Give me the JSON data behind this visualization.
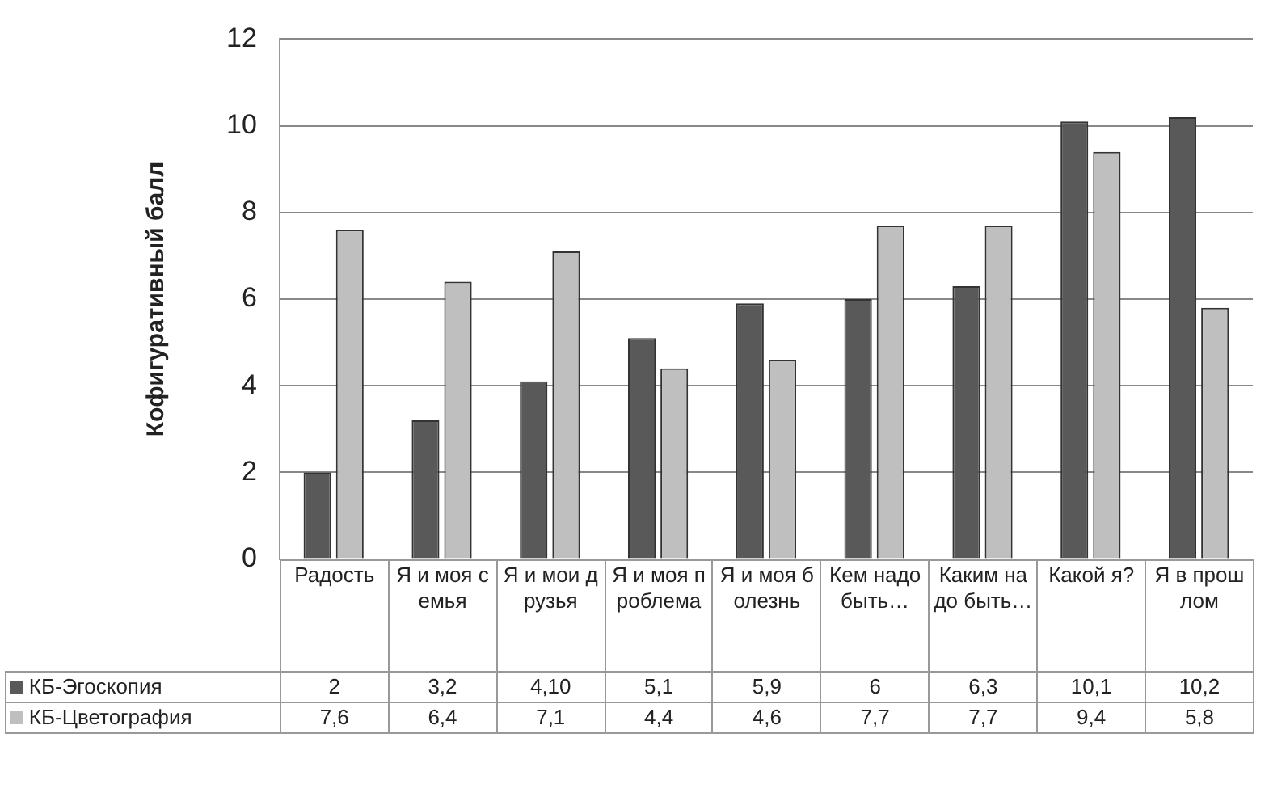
{
  "chart_data": {
    "type": "bar",
    "ylabel": "Кофигуративный балл",
    "categories": [
      "Радость",
      "Я и моя семья",
      "Я и мои друзья",
      "Я и моя проблема",
      "Я и моя болезнь",
      "Кем надо быть…",
      "Каким надо быть…",
      "Какой я?",
      "Я в прошлом"
    ],
    "series": [
      {
        "name": "КБ-Эгоскопия",
        "color": "#595959",
        "values": [
          2,
          3.2,
          4.1,
          5.1,
          5.9,
          6,
          6.3,
          10.1,
          10.2
        ],
        "value_labels": [
          "2",
          "3,2",
          "4,10",
          "5,1",
          "5,9",
          "6",
          "6,3",
          "10,1",
          "10,2"
        ]
      },
      {
        "name": "КБ-Цветография",
        "color": "#bfbfbf",
        "values": [
          7.6,
          6.4,
          7.1,
          4.4,
          4.6,
          7.7,
          7.7,
          9.4,
          5.8
        ],
        "value_labels": [
          "7,6",
          "6,4",
          "7,1",
          "4,4",
          "4,6",
          "7,7",
          "7,7",
          "9,4",
          "5,8"
        ]
      }
    ],
    "ylim": [
      0,
      12
    ],
    "yticks": [
      0,
      2,
      4,
      6,
      8,
      10,
      12
    ],
    "grid": "y",
    "legend": "bottom"
  }
}
